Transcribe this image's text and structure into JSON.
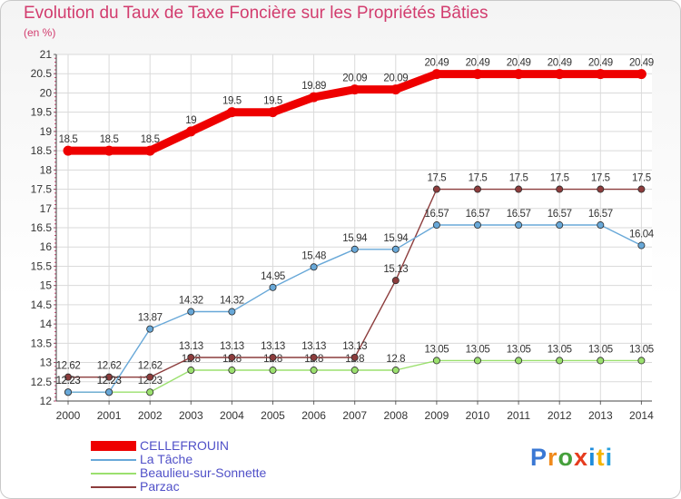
{
  "title": "Evolution du Taux de Taxe Foncière sur les Propriétés Bâties",
  "subtitle": "(en %)",
  "brand": {
    "name": "Proxiti",
    "colors": [
      "#3a78d4",
      "#f08a1c",
      "#46a03c",
      "#e63c1e",
      "#1e8cdc",
      "#f5b400",
      "#28a0dc"
    ]
  },
  "chart_data": {
    "type": "line",
    "title": "Evolution du Taux de Taxe Foncière sur les Propriétés Bâties",
    "ylabel": "(en %)",
    "xlabel": "",
    "ylim": [
      12,
      21
    ],
    "yticks": [
      "12",
      "12.5",
      "13",
      "13.5",
      "14",
      "14.5",
      "15",
      "15.5",
      "16",
      "16.5",
      "17",
      "17.5",
      "18",
      "18.5",
      "19",
      "19.5",
      "20",
      "20.5",
      "21"
    ],
    "categories": [
      "2000",
      "2001",
      "2002",
      "2003",
      "2004",
      "2005",
      "2006",
      "2007",
      "2008",
      "2009",
      "2010",
      "2011",
      "2012",
      "2013",
      "2014"
    ],
    "series": [
      {
        "name": "Beaulieu-sur-Sonnette",
        "color": "#9be06e",
        "values": [
          12.23,
          12.23,
          12.23,
          12.8,
          12.8,
          12.8,
          12.8,
          12.8,
          12.8,
          13.05,
          13.05,
          13.05,
          13.05,
          13.05,
          13.05
        ],
        "labels": [
          "12.23",
          "12.23",
          "12.23",
          "12.8",
          "12.8",
          "12.8",
          "12.8",
          "12.8",
          "12.8",
          "13.05",
          "13.05",
          "13.05",
          "13.05",
          "13.05",
          "13.05"
        ]
      },
      {
        "name": "Parzac",
        "color": "#8c3c3c",
        "values": [
          12.62,
          12.62,
          12.62,
          13.13,
          13.13,
          13.13,
          13.13,
          13.13,
          15.13,
          17.5,
          17.5,
          17.5,
          17.5,
          17.5,
          17.5
        ],
        "labels": [
          "12.62",
          "12.62",
          "12.62",
          "13.13",
          "13.13",
          "13.13",
          "13.13",
          "13.13",
          "15.13",
          "17.5",
          "17.5",
          "17.5",
          "17.5",
          "17.5",
          "17.5"
        ]
      },
      {
        "name": "La Tâche",
        "color": "#68a8d8",
        "values": [
          12.23,
          12.23,
          13.87,
          14.32,
          14.32,
          14.95,
          15.48,
          15.94,
          15.94,
          16.57,
          16.57,
          16.57,
          16.57,
          16.57,
          16.04
        ],
        "labels": [
          "12.23",
          "12.23",
          "13.87",
          "14.32",
          "14.32",
          "14.95",
          "15.48",
          "15.94",
          "15.94",
          "16.57",
          "16.57",
          "16.57",
          "16.57",
          "16.57",
          "16.04"
        ]
      },
      {
        "name": "CELLEFROUIN",
        "color": "#ee0000",
        "values": [
          18.5,
          18.5,
          18.5,
          19,
          19.5,
          19.5,
          19.89,
          20.09,
          20.09,
          20.49,
          20.49,
          20.49,
          20.49,
          20.49,
          20.49
        ],
        "labels": [
          "18.5",
          "18.5",
          "18.5",
          "19",
          "19.5",
          "19.5",
          "19.89",
          "20.09",
          "20.09",
          "20.49",
          "20.49",
          "20.49",
          "20.49",
          "20.49",
          "20.49"
        ]
      }
    ],
    "legend": {
      "position": "bottom-left",
      "items": [
        {
          "name": "CELLEFROUIN",
          "color": "#ee0000"
        },
        {
          "name": "La Tâche",
          "color": "#68a8d8"
        },
        {
          "name": "Beaulieu-sur-Sonnette",
          "color": "#9be06e"
        },
        {
          "name": "Parzac",
          "color": "#8c3c3c"
        }
      ]
    }
  }
}
